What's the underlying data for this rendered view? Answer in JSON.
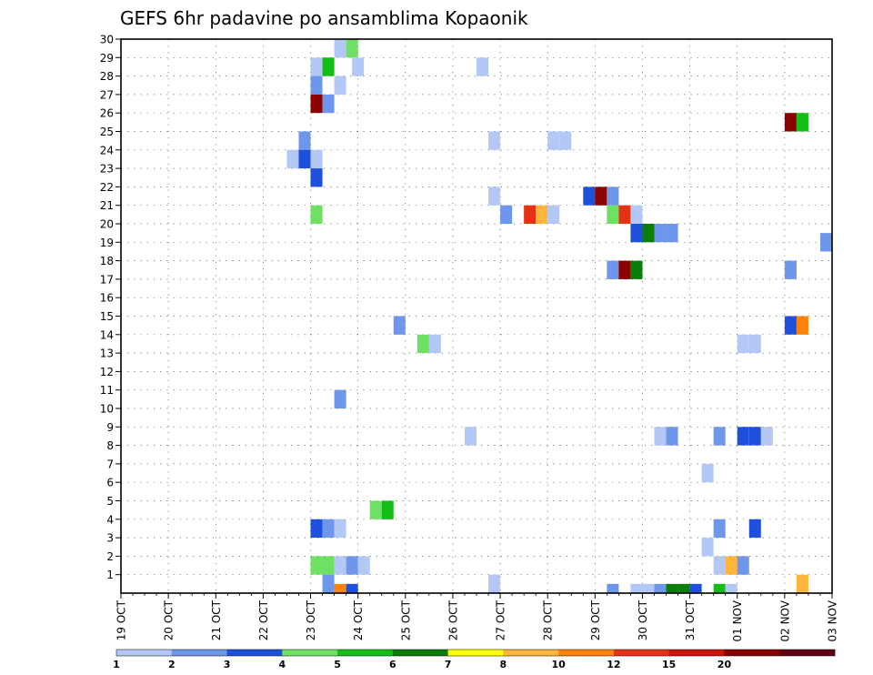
{
  "chart_data": {
    "type": "heatmap",
    "title": "GEFS 6hr padavine po ansamblima Kopaonik",
    "xlabel": "",
    "ylabel": "",
    "x_tick_labels": [
      "19 OCT",
      "20 OCT",
      "21 OCT",
      "22 OCT",
      "23 OCT",
      "24 OCT",
      "25 OCT",
      "26 OCT",
      "27 OCT",
      "28 OCT",
      "29 OCT",
      "30 OCT",
      "31 OCT",
      "01 NOV",
      "02 NOV",
      "03 NOV"
    ],
    "y_tick_labels": [
      "1",
      "2",
      "3",
      "4",
      "5",
      "6",
      "7",
      "8",
      "9",
      "10",
      "11",
      "12",
      "13",
      "14",
      "15",
      "16",
      "17",
      "18",
      "19",
      "20",
      "21",
      "22",
      "23",
      "24",
      "25",
      "26",
      "27",
      "28",
      "29",
      "30"
    ],
    "xlim": [
      0,
      60
    ],
    "ylim": [
      0,
      30
    ],
    "grid": true,
    "bins": [
      {
        "label": "1",
        "color": "#b4c8f5"
      },
      {
        "label": "2",
        "color": "#6e96eb"
      },
      {
        "label": "3",
        "color": "#1e50dc"
      },
      {
        "label": "4",
        "color": "#6ee164"
      },
      {
        "label": "5",
        "color": "#14be14"
      },
      {
        "label": "6",
        "color": "#0a7d0a"
      },
      {
        "label": "7",
        "color": "#ffff00"
      },
      {
        "label": "8",
        "color": "#ffb43c"
      },
      {
        "label": "10",
        "color": "#ff820a"
      },
      {
        "label": "12",
        "color": "#e63214"
      },
      {
        "label": "15",
        "color": "#c8140a"
      },
      {
        "label": "20",
        "color": "#8c0000"
      },
      {
        "label": "",
        "color": "#640014"
      }
    ],
    "cells": [
      [
        18.5,
        29.5,
        0
      ],
      [
        19.5,
        29.5,
        3
      ],
      [
        20,
        28.5,
        0
      ],
      [
        16.5,
        28.5,
        0
      ],
      [
        17.5,
        28.5,
        4
      ],
      [
        30.5,
        28.5,
        0
      ],
      [
        16.5,
        27.5,
        1
      ],
      [
        18.5,
        27.5,
        0
      ],
      [
        16.5,
        26.5,
        11
      ],
      [
        17.5,
        26.5,
        1
      ],
      [
        56.5,
        25.5,
        11
      ],
      [
        57.5,
        25.5,
        4
      ],
      [
        31.5,
        24.5,
        0
      ],
      [
        36.5,
        24.5,
        0
      ],
      [
        37.5,
        24.5,
        0
      ],
      [
        15.5,
        24.5,
        1
      ],
      [
        14.5,
        23.5,
        0
      ],
      [
        15.5,
        23.5,
        2
      ],
      [
        16.5,
        23.5,
        0
      ],
      [
        16.5,
        22.5,
        2
      ],
      [
        31.5,
        21.5,
        0
      ],
      [
        39.5,
        21.5,
        2
      ],
      [
        40.5,
        21.5,
        11
      ],
      [
        41.5,
        21.5,
        1
      ],
      [
        16.5,
        20.5,
        3
      ],
      [
        32.5,
        20.5,
        1
      ],
      [
        34.5,
        20.5,
        9
      ],
      [
        35.5,
        20.5,
        7
      ],
      [
        36.5,
        20.5,
        0
      ],
      [
        41.5,
        20.5,
        3
      ],
      [
        42.5,
        20.5,
        9
      ],
      [
        43.5,
        20.5,
        0
      ],
      [
        43.5,
        19.5,
        2
      ],
      [
        44.5,
        19.5,
        5
      ],
      [
        45.5,
        19.5,
        1
      ],
      [
        46.5,
        19.5,
        1
      ],
      [
        59.5,
        19,
        1
      ],
      [
        41.5,
        17.5,
        1
      ],
      [
        42.5,
        17.5,
        11
      ],
      [
        43.5,
        17.5,
        5
      ],
      [
        56.5,
        17.5,
        1
      ],
      [
        23.5,
        14.5,
        1
      ],
      [
        56.5,
        14.5,
        2
      ],
      [
        57.5,
        14.5,
        8
      ],
      [
        25.5,
        13.5,
        3
      ],
      [
        26.5,
        13.5,
        0
      ],
      [
        52.5,
        13.5,
        0
      ],
      [
        53.5,
        13.5,
        0
      ],
      [
        18.5,
        10.5,
        1
      ],
      [
        29.5,
        8.5,
        0
      ],
      [
        45.5,
        8.5,
        0
      ],
      [
        46.5,
        8.5,
        1
      ],
      [
        50.5,
        8.5,
        1
      ],
      [
        52.5,
        8.5,
        2
      ],
      [
        53.5,
        8.5,
        2
      ],
      [
        54.5,
        8.5,
        0
      ],
      [
        49.5,
        6.5,
        0
      ],
      [
        21.5,
        4.5,
        3
      ],
      [
        22.5,
        4.5,
        4
      ],
      [
        16.5,
        3.5,
        2
      ],
      [
        17.5,
        3.5,
        1
      ],
      [
        18.5,
        3.5,
        0
      ],
      [
        50.5,
        3.5,
        1
      ],
      [
        53.5,
        3.5,
        2
      ],
      [
        49.5,
        2.5,
        0
      ],
      [
        16.5,
        1.5,
        3
      ],
      [
        17.5,
        1.5,
        3
      ],
      [
        18.5,
        1.5,
        0
      ],
      [
        19.5,
        1.5,
        1
      ],
      [
        20.5,
        1.5,
        0
      ],
      [
        50.5,
        1.5,
        0
      ],
      [
        51.5,
        1.5,
        7
      ],
      [
        52.5,
        1.5,
        1
      ],
      [
        17.5,
        0.5,
        1
      ],
      [
        31.5,
        0.5,
        0
      ],
      [
        57.5,
        0.5,
        7
      ],
      [
        18.5,
        0,
        8
      ],
      [
        19.5,
        0,
        2
      ],
      [
        41.5,
        0,
        1
      ],
      [
        43.5,
        0,
        0
      ],
      [
        44.5,
        0,
        0
      ],
      [
        45.5,
        0,
        1
      ],
      [
        46.5,
        0,
        5
      ],
      [
        47.5,
        0,
        5
      ],
      [
        48.5,
        0,
        2
      ],
      [
        50.5,
        0,
        4
      ],
      [
        51.5,
        0,
        0
      ]
    ]
  }
}
